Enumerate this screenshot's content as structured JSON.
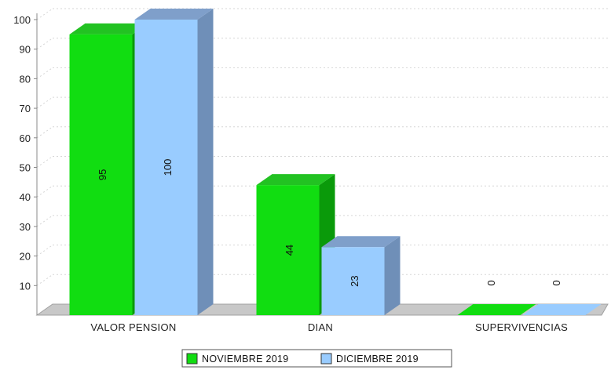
{
  "chart_data": {
    "type": "bar",
    "style": "3d-grouped",
    "categories": [
      "VALOR PENSION",
      "DIAN",
      "SUPERVIVENCIAS"
    ],
    "series": [
      {
        "name": "NOVIEMBRE 2019",
        "values": [
          95,
          44,
          0
        ],
        "color": "#11dd11",
        "side_color": "#0a9a0a",
        "top_color": "#22c222"
      },
      {
        "name": "DICIEMBRE 2019",
        "values": [
          100,
          23,
          0
        ],
        "color": "#99ccff",
        "side_color": "#6f8fb8",
        "top_color": "#7f9fca"
      }
    ],
    "y_ticks": [
      10,
      20,
      30,
      40,
      50,
      60,
      70,
      80,
      90,
      100
    ],
    "ylim": [
      0,
      100
    ],
    "grid": true,
    "legend": "bottom-center",
    "title": "",
    "xlabel": "",
    "ylabel": ""
  }
}
